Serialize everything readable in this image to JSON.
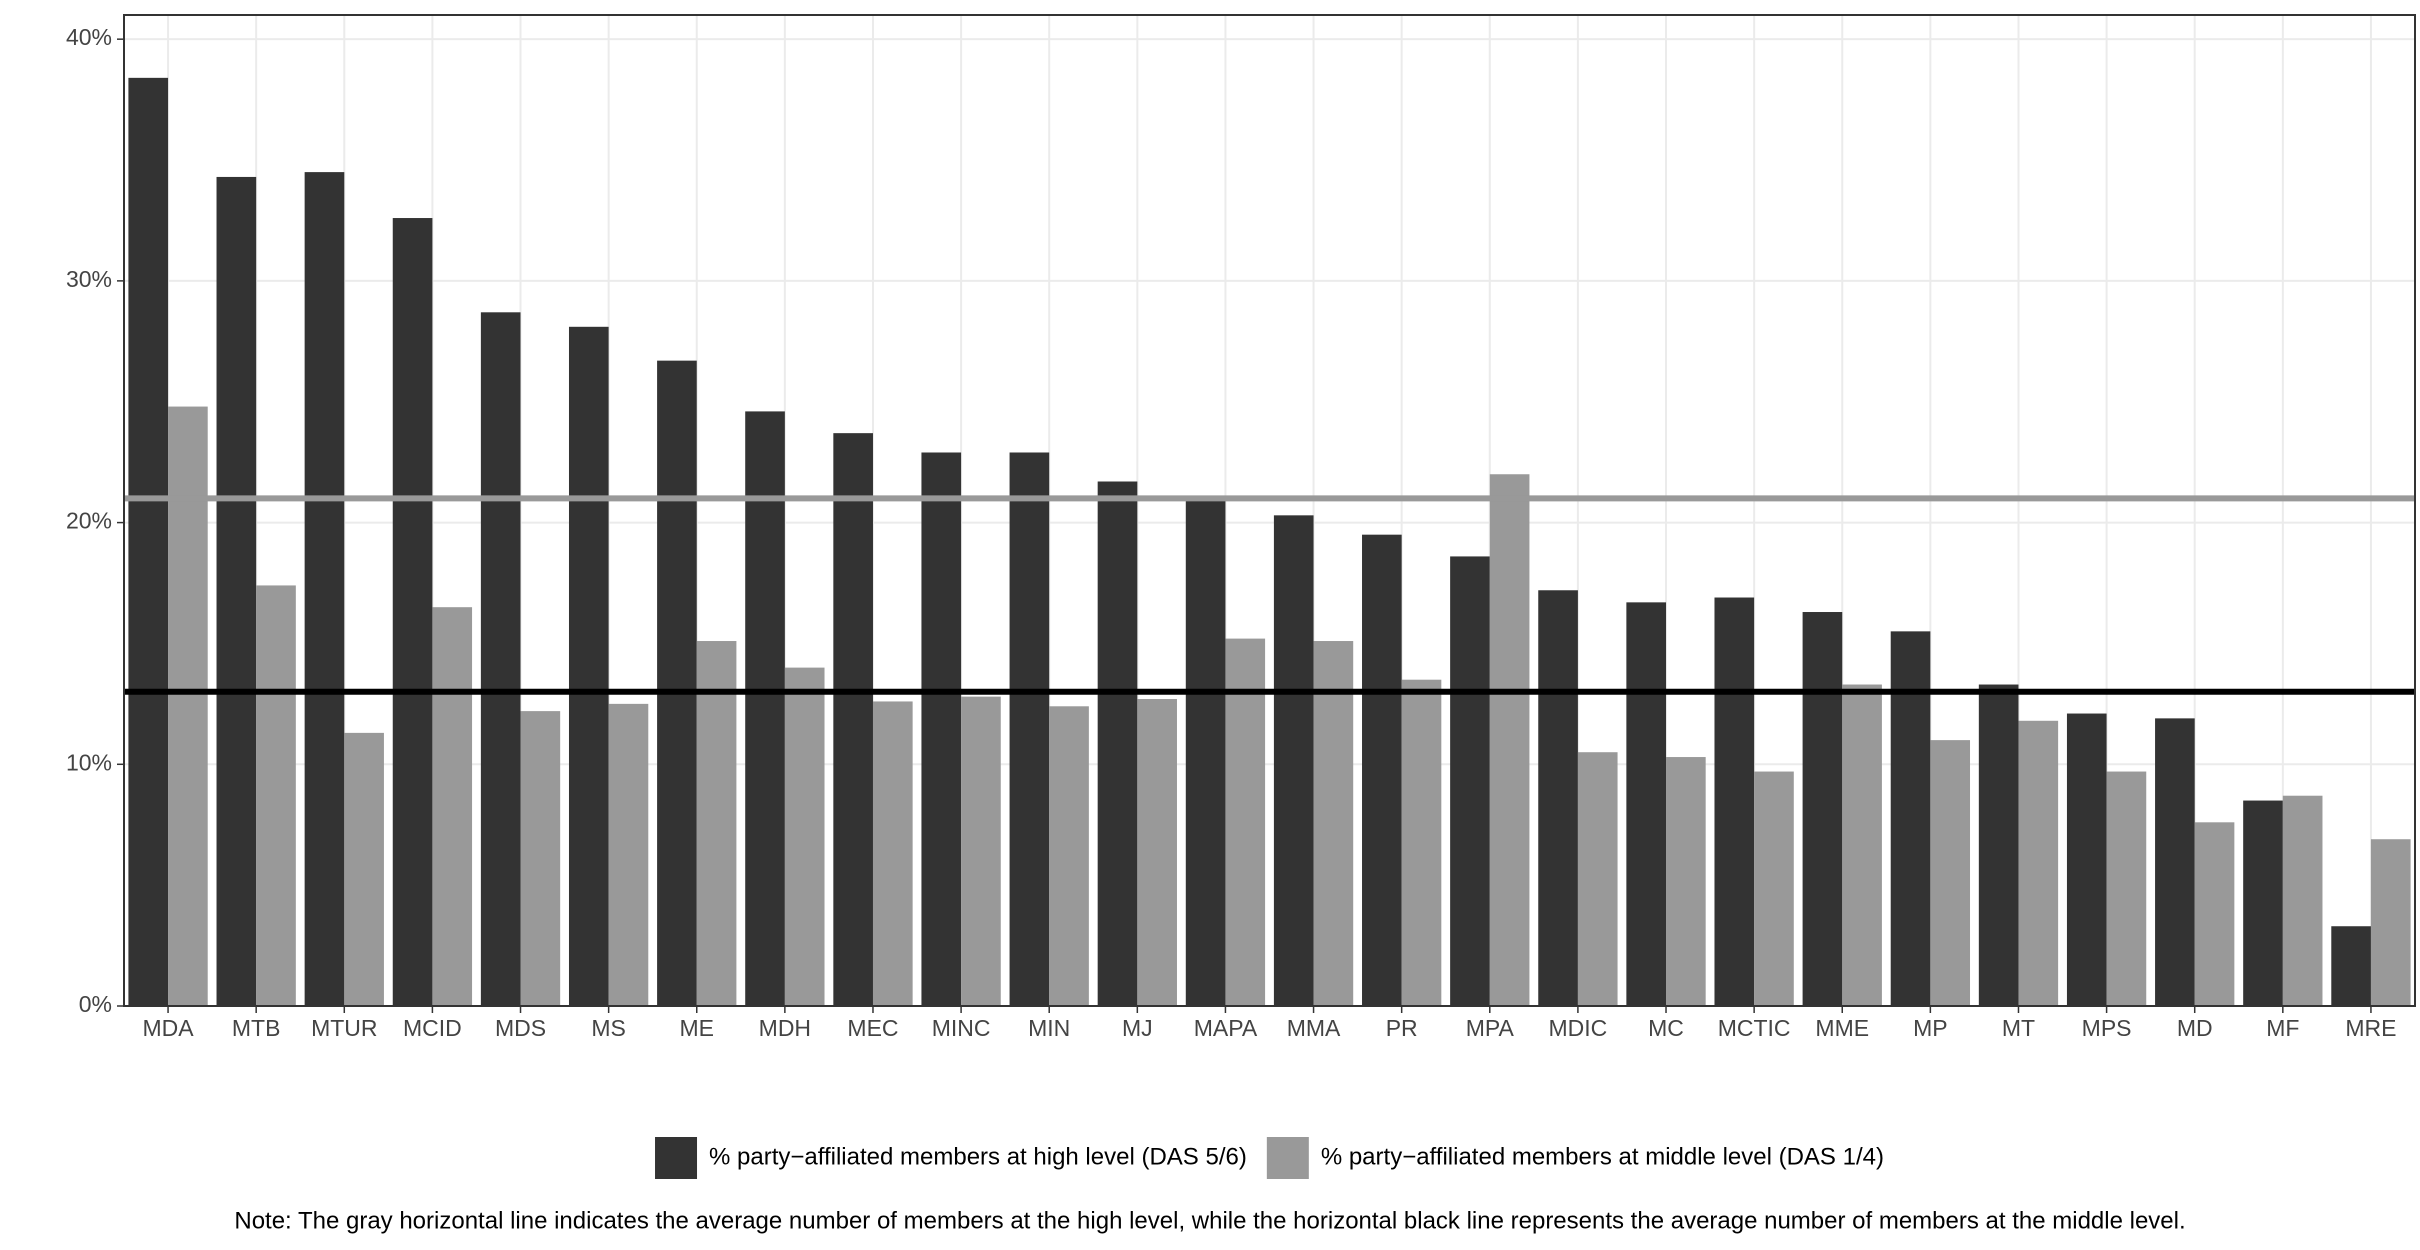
{
  "chart_data": {
    "type": "bar",
    "categories": [
      "MDA",
      "MTB",
      "MTUR",
      "MCID",
      "MDS",
      "MS",
      "ME",
      "MDH",
      "MEC",
      "MINC",
      "MIN",
      "MJ",
      "MAPA",
      "MMA",
      "PR",
      "MPA",
      "MDIC",
      "MC",
      "MCTIC",
      "MME",
      "MP",
      "MT",
      "MPS",
      "MD",
      "MF",
      "MRE"
    ],
    "series": [
      {
        "name": "% party−affiliated members at high level (DAS 5/6)",
        "color": "#333333",
        "values": [
          38.4,
          34.3,
          34.5,
          32.6,
          28.7,
          28.1,
          26.7,
          24.6,
          23.7,
          22.9,
          22.9,
          21.7,
          21.0,
          20.3,
          19.5,
          18.6,
          17.2,
          16.7,
          16.9,
          16.3,
          15.5,
          13.3,
          12.1,
          11.9,
          8.5,
          3.3
        ]
      },
      {
        "name": "% party−affiliated members at middle level (DAS 1/4)",
        "color": "#999999",
        "values": [
          24.8,
          17.4,
          11.3,
          16.5,
          12.2,
          12.5,
          15.1,
          14.0,
          12.6,
          12.8,
          12.4,
          12.7,
          15.2,
          15.1,
          13.5,
          22.0,
          10.5,
          10.3,
          9.7,
          13.3,
          11.0,
          11.8,
          9.7,
          7.6,
          8.7,
          6.9
        ]
      }
    ],
    "reference_lines": [
      {
        "value": 21.0,
        "color": "#999999"
      },
      {
        "value": 13.0,
        "color": "#000000"
      }
    ],
    "ylim": [
      0,
      41
    ],
    "yticks": [
      {
        "value": 0,
        "label": "0%"
      },
      {
        "value": 10,
        "label": "10%"
      },
      {
        "value": 20,
        "label": "20%"
      },
      {
        "value": 30,
        "label": "30%"
      },
      {
        "value": 40,
        "label": "40%"
      }
    ],
    "grid": true,
    "legend": "bottom",
    "note": "Note: The gray horizontal line indicates the average number of members at the high level, while the horizontal black line represents the average number of members at the middle level."
  }
}
